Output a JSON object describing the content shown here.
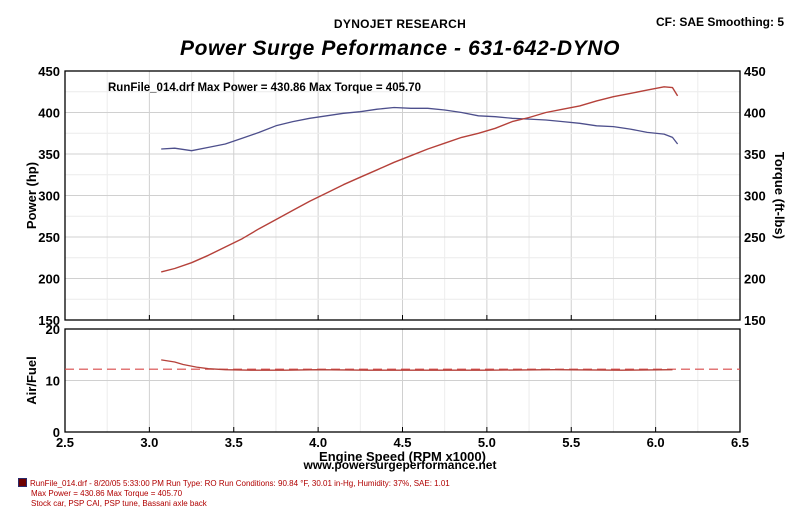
{
  "header": {
    "company": "DYNOJET RESEARCH",
    "cf_smoothing": "CF: SAE  Smoothing: 5",
    "title": "Power Surge Peformance - 631-642-DYNO"
  },
  "website": "www.powersurgeperformance.net",
  "footer": {
    "line1": "RunFile_014.drf - 8/20/05 5:33:00 PM  Run Type: RO  Run Conditions: 90.84 °F, 30.01 in-Hg,  Humidity:  37%, SAE: 1.01",
    "line2": "Max Power = 430.86  Max Torque = 405.70",
    "line3": "Stock car, PSP CAI, PSP tune, Bassani axle back"
  },
  "colors": {
    "power": "#b5413a",
    "torque": "#4d4f8c",
    "afr": "#b5413a",
    "afr_target": "#d84a4a",
    "grid": "#d0d0d0",
    "frame": "#000000"
  },
  "chart_data": [
    {
      "type": "line",
      "annotation": "RunFile_014.drf Max Power = 430.86     Max Torque = 405.70",
      "xlabel": "Engine Speed (RPM x1000)",
      "xlim": [
        2.5,
        6.5
      ],
      "xticks": [
        "2.5",
        "3.0",
        "3.5",
        "4.0",
        "4.5",
        "5.0",
        "5.5",
        "6.0",
        "6.5"
      ],
      "ylabel": "Power (hp)",
      "ylim": [
        150,
        450
      ],
      "yticks": [
        "150",
        "200",
        "250",
        "300",
        "350",
        "400",
        "450"
      ],
      "y2label": "Torque (ft-lbs)",
      "y2lim": [
        150,
        450
      ],
      "y2ticks": [
        "150",
        "200",
        "250",
        "300",
        "350",
        "400",
        "450"
      ],
      "grid": true,
      "series": [
        {
          "axis": "left",
          "x": [
            3.07,
            3.15,
            3.25,
            3.35,
            3.45,
            3.55,
            3.65,
            3.75,
            3.85,
            3.95,
            4.05,
            4.15,
            4.25,
            4.35,
            4.45,
            4.55,
            4.65,
            4.75,
            4.85,
            4.95,
            5.05,
            5.15,
            5.25,
            5.35,
            5.45,
            5.55,
            5.65,
            5.75,
            5.85,
            5.95,
            6.05,
            6.1,
            6.13
          ],
          "values": [
            208,
            212,
            219,
            228,
            238,
            248,
            260,
            271,
            282,
            293,
            303,
            313,
            322,
            331,
            340,
            348,
            356,
            363,
            370,
            375,
            381,
            389,
            394,
            400,
            404,
            408,
            414,
            419,
            423,
            427,
            431,
            430,
            420
          ]
        },
        {
          "axis": "right",
          "x": [
            3.07,
            3.15,
            3.25,
            3.35,
            3.45,
            3.55,
            3.65,
            3.75,
            3.85,
            3.95,
            4.05,
            4.15,
            4.25,
            4.35,
            4.45,
            4.55,
            4.65,
            4.75,
            4.85,
            4.95,
            5.05,
            5.15,
            5.25,
            5.35,
            5.45,
            5.55,
            5.65,
            5.75,
            5.85,
            5.95,
            6.05,
            6.1,
            6.13
          ],
          "values": [
            356,
            357,
            354,
            358,
            362,
            369,
            376,
            384,
            389,
            393,
            396,
            399,
            401,
            404,
            406,
            405,
            405,
            403,
            400,
            396,
            395,
            393,
            392,
            391,
            389,
            387,
            384,
            383,
            380,
            376,
            374,
            370,
            362
          ]
        }
      ]
    },
    {
      "type": "line",
      "xlabel": "Engine Speed (RPM x1000)",
      "xlim": [
        2.5,
        6.5
      ],
      "ylabel": "Air/Fuel",
      "ylim": [
        0,
        20
      ],
      "yticks": [
        "0",
        "10",
        "20"
      ],
      "grid": true,
      "target_afr": 12.2,
      "series": [
        {
          "x": [
            3.07,
            3.15,
            3.2,
            3.28,
            3.35,
            3.45,
            3.6,
            3.8,
            4.0,
            4.3,
            4.6,
            5.0,
            5.4,
            5.8,
            6.1
          ],
          "values": [
            14.0,
            13.6,
            13.1,
            12.6,
            12.3,
            12.1,
            12.0,
            12.0,
            12.1,
            12.0,
            12.0,
            12.0,
            12.1,
            12.0,
            12.1
          ]
        }
      ]
    }
  ]
}
